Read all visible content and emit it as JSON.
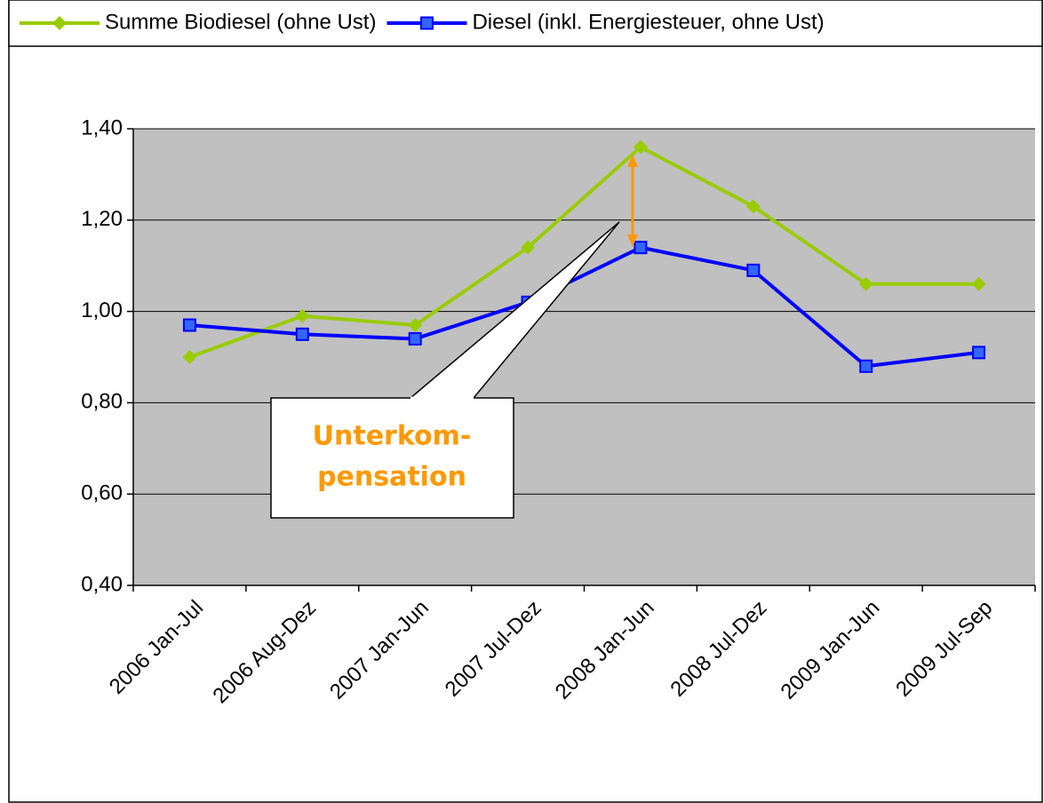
{
  "chart_data": {
    "type": "line",
    "categories": [
      "2006 Jan-Jul",
      "2006 Aug-Dez",
      "2007 Jan-Jun",
      "2007 Jul-Dez",
      "2008 Jan-Jun",
      "2008 Jul-Dez",
      "2009 Jan-Jun",
      "2009 Jul-Sep"
    ],
    "series": [
      {
        "name": "Summe Biodiesel (ohne Ust)",
        "color": "#99cc00",
        "marker": "diamond",
        "values": [
          0.9,
          0.99,
          0.97,
          1.14,
          1.36,
          1.23,
          1.06,
          1.06
        ]
      },
      {
        "name": "Diesel (inkl. Energiesteuer, ohne Ust)",
        "color": "#0000ff",
        "marker": "square",
        "values": [
          0.97,
          0.95,
          0.94,
          1.02,
          1.14,
          1.09,
          0.88,
          0.91
        ]
      }
    ],
    "ylim": [
      0.4,
      1.4
    ],
    "yticks": [
      {
        "value": 0.4,
        "label": "0,40"
      },
      {
        "value": 0.6,
        "label": "0,60"
      },
      {
        "value": 0.8,
        "label": "0,80"
      },
      {
        "value": 1.0,
        "label": "1,00"
      },
      {
        "value": 1.2,
        "label": "1,20"
      },
      {
        "value": 1.4,
        "label": "1,40"
      }
    ],
    "grid": true,
    "legend": "top",
    "plot_background": "#c0c0c0",
    "annotation": [
      "Unterkom-",
      "pensation"
    ]
  }
}
